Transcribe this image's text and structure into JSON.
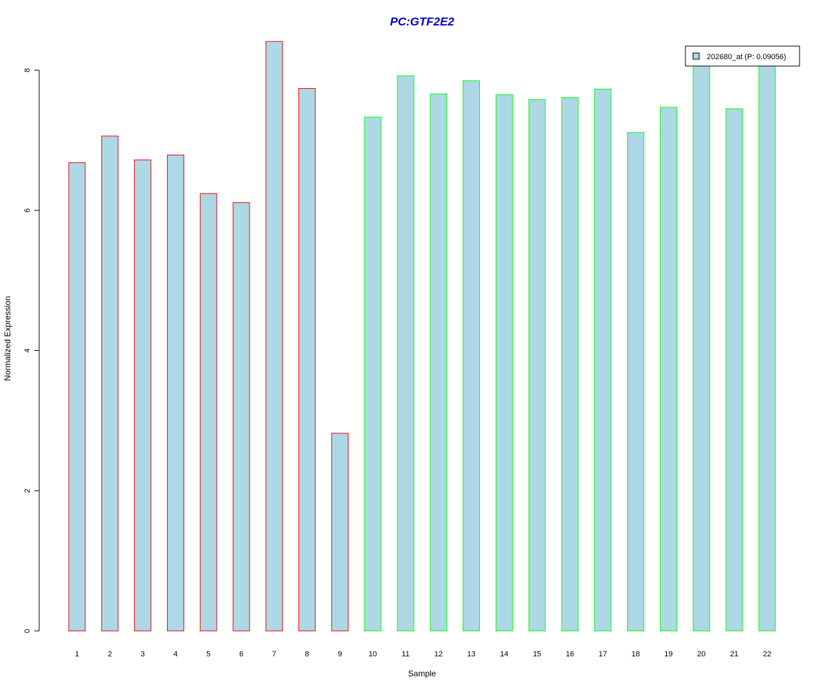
{
  "chart_data": {
    "type": "bar",
    "title": "PC:GTF2E2",
    "xlabel": "Sample",
    "ylabel": "Normalized Expression",
    "ylim": [
      0,
      8.6
    ],
    "yticks": [
      0,
      2,
      4,
      6,
      8
    ],
    "categories": [
      "1",
      "2",
      "3",
      "4",
      "5",
      "6",
      "7",
      "8",
      "9",
      "10",
      "11",
      "12",
      "13",
      "14",
      "15",
      "16",
      "17",
      "18",
      "19",
      "20",
      "21",
      "22"
    ],
    "series": [
      {
        "name": "202680_at (P: 0.09056)",
        "values": [
          6.68,
          7.06,
          6.72,
          6.79,
          6.24,
          6.11,
          8.41,
          7.74,
          2.82,
          7.33,
          7.92,
          7.66,
          7.85,
          7.65,
          7.58,
          7.61,
          7.73,
          7.11,
          7.47,
          8.1,
          7.45,
          8.1
        ]
      }
    ],
    "groups": [
      {
        "samples": [
          1,
          2,
          3,
          4,
          5,
          6,
          7,
          8,
          9
        ],
        "border_color": "#ff0000"
      },
      {
        "samples": [
          10,
          11,
          12,
          13,
          14,
          15,
          16,
          17,
          18,
          19,
          20,
          21,
          22
        ],
        "border_color": "#00ff00"
      }
    ],
    "fill_color": "#add8e6",
    "title_color": "#0000cd",
    "legend_position": "top-right",
    "grid": false
  }
}
